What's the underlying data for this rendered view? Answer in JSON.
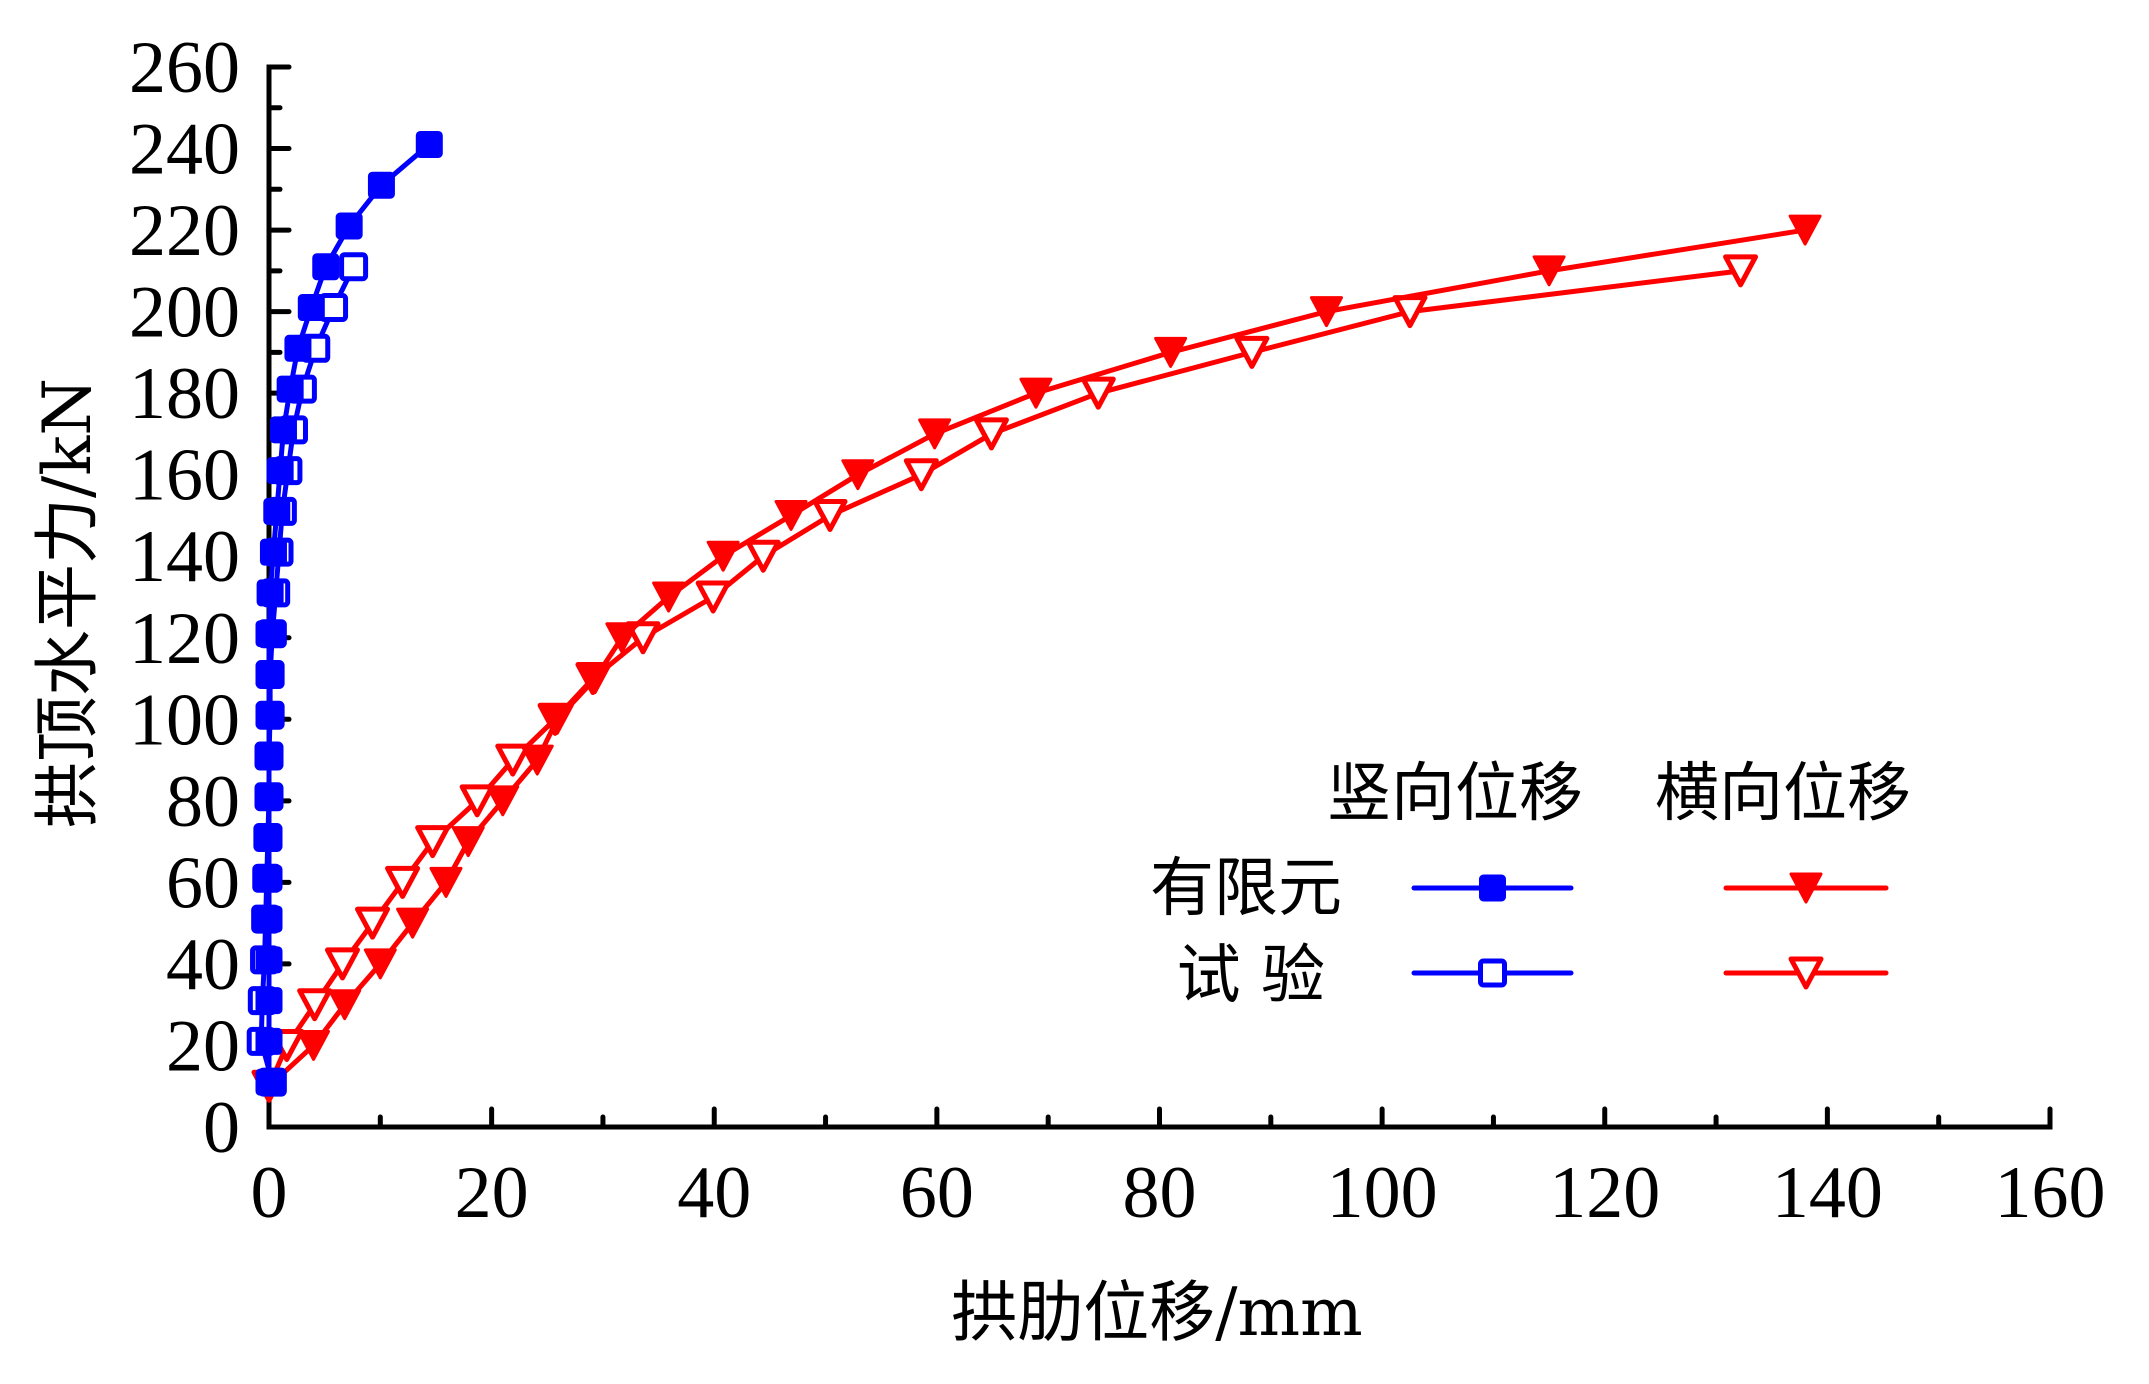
{
  "chart_data": {
    "type": "line",
    "title": "",
    "xlabel": "拱肋位移/mm",
    "ylabel": "拱顶水平力/kN",
    "xlim": [
      0,
      160
    ],
    "ylim": [
      0,
      260
    ],
    "x_ticks": [
      "0",
      "20",
      "40",
      "60",
      "80",
      "100",
      "120",
      "140",
      "160"
    ],
    "y_ticks": [
      "0",
      "20",
      "40",
      "60",
      "80",
      "100",
      "120",
      "140",
      "160",
      "180",
      "200",
      "220",
      "240",
      "260"
    ],
    "grid": false,
    "legend": {
      "placement": "bottom-right",
      "column_headers": [
        "竖向位移",
        "横向位移"
      ],
      "row_labels": [
        "有限元",
        "试 验"
      ]
    },
    "series": [
      {
        "name": "竖向位移 有限元",
        "color": "#0000ff",
        "marker": "square-filled",
        "x": [
          0,
          0,
          0,
          0,
          0,
          0,
          0,
          0,
          0,
          0,
          0,
          0,
          0.1,
          0.4,
          0.7,
          1.0,
          1.3,
          1.9,
          2.6,
          3.8,
          5.1,
          7.2,
          10.1,
          14.4
        ],
        "y": [
          11,
          21,
          31,
          41,
          51,
          61,
          71,
          81,
          91,
          101,
          111,
          121,
          131,
          141,
          151,
          161,
          171,
          181,
          191,
          201,
          211,
          221,
          231,
          241
        ]
      },
      {
        "name": "竖向位移 试验",
        "color": "#0000ff",
        "marker": "square-open",
        "x": [
          0.3,
          -0.7,
          -0.6,
          -0.4,
          -0.3,
          -0.2,
          -0.1,
          0,
          0,
          0.1,
          0.1,
          0.3,
          0.6,
          0.9,
          1.2,
          1.7,
          2.2,
          3.0,
          4.2,
          5.8,
          7.6
        ],
        "y": [
          11,
          21,
          31,
          41,
          51,
          61,
          71,
          81,
          91,
          101,
          111,
          121,
          131,
          141,
          151,
          161,
          171,
          181,
          191,
          201,
          211
        ]
      },
      {
        "name": "横向位移 有限元",
        "color": "#ff0000",
        "marker": "triangle-down-filled",
        "x": [
          0,
          4.0,
          6.8,
          10.0,
          12.9,
          15.9,
          17.9,
          21.0,
          24.1,
          25.9,
          29.3,
          31.7,
          35.9,
          40.8,
          46.9,
          52.9,
          59.8,
          68.9,
          81.0,
          95.0,
          115.0,
          138.0
        ],
        "y": [
          10,
          20,
          30,
          40,
          50,
          60,
          70,
          80,
          90,
          100,
          110,
          120,
          130,
          140,
          150,
          160,
          170,
          180,
          190,
          200,
          210,
          220
        ]
      },
      {
        "name": "横向位移 试验",
        "color": "#ff0000",
        "marker": "triangle-down-open",
        "x": [
          0,
          1.6,
          4.1,
          6.6,
          9.3,
          12.0,
          14.7,
          18.7,
          21.9,
          25.7,
          29.1,
          33.6,
          39.9,
          44.4,
          50.4,
          58.6,
          64.9,
          74.5,
          88.3,
          102.5,
          132.2
        ],
        "y": [
          10,
          20,
          30,
          40,
          50,
          60,
          70,
          80,
          90,
          100,
          110,
          120,
          130,
          140,
          150,
          160,
          170,
          180,
          190,
          200,
          210
        ]
      }
    ]
  }
}
